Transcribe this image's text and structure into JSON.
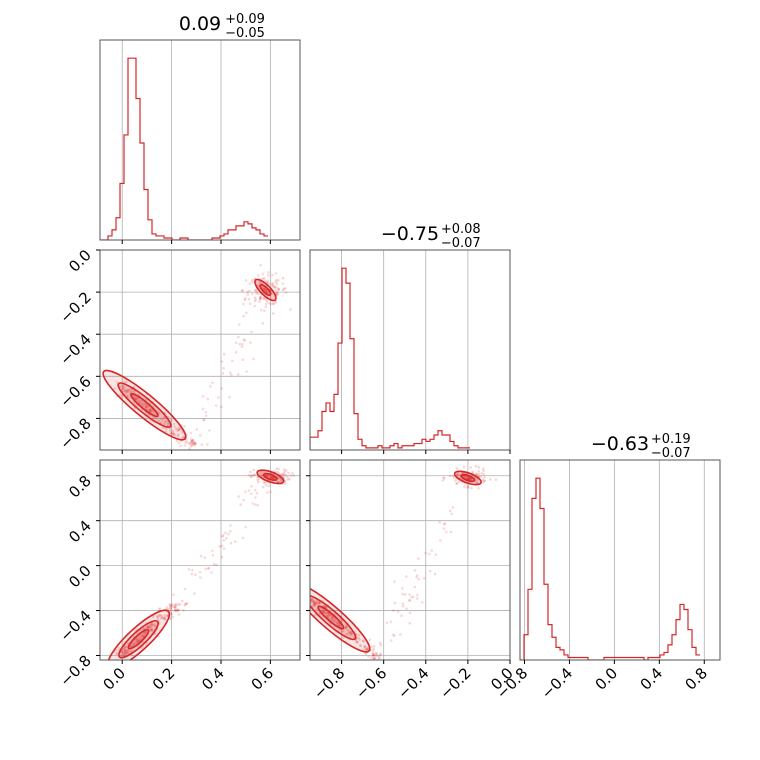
{
  "figure": {
    "type": "corner_plot",
    "color": "#d62728",
    "grid": true
  },
  "chart_data": [
    {
      "id": "hist-p0",
      "type": "histogram",
      "title": {
        "median": "0.09",
        "plus": "+0.09",
        "minus": "−0.05"
      },
      "xlim": [
        -0.09,
        0.72
      ],
      "xticks": [
        0.0,
        0.2,
        0.4,
        0.6
      ],
      "bin_start": -0.09,
      "bin_width": 0.0162,
      "counts": [
        0,
        0,
        2,
        5,
        11,
        28,
        52,
        90,
        90,
        70,
        48,
        25,
        10,
        3,
        2,
        2,
        1,
        1,
        0,
        0,
        1,
        1,
        0,
        0,
        0,
        0,
        0,
        0,
        1,
        1,
        2,
        3,
        5,
        5,
        7,
        7,
        9,
        8,
        6,
        5,
        3,
        2
      ]
    },
    {
      "id": "hist-p1",
      "type": "histogram",
      "title": {
        "median": "−0.75",
        "plus": "+0.08",
        "minus": "−0.07"
      },
      "xlim": [
        -0.95,
        0.0
      ],
      "xticks": [
        -0.8,
        -0.6,
        -0.4,
        -0.2,
        0.0
      ],
      "bin_start": -0.95,
      "bin_width": 0.019,
      "counts": [
        6,
        6,
        9,
        18,
        22,
        18,
        26,
        50,
        85,
        78,
        52,
        17,
        5,
        2,
        1,
        1,
        1,
        2,
        1,
        1,
        2,
        3,
        1,
        2,
        2,
        2,
        3,
        3,
        5,
        4,
        5,
        7,
        9,
        7,
        7,
        4,
        2,
        1,
        1,
        1
      ]
    },
    {
      "id": "hist-p2",
      "type": "histogram",
      "title": {
        "median": "−0.63",
        "plus": "+0.19",
        "minus": "−0.07"
      },
      "xlim": [
        -0.84,
        0.94
      ],
      "xticks": [
        -0.8,
        -0.4,
        0.0,
        0.4,
        0.8
      ],
      "bin_start": -0.84,
      "bin_width": 0.0356,
      "counts": [
        0,
        10,
        28,
        64,
        72,
        60,
        30,
        14,
        9,
        5,
        4,
        2,
        1,
        1,
        1,
        1,
        1,
        0,
        0,
        0,
        0,
        1,
        1,
        1,
        1,
        1,
        1,
        1,
        1,
        1,
        1,
        0,
        1,
        1,
        1,
        2,
        3,
        6,
        10,
        16,
        22,
        20,
        12,
        5,
        2
      ]
    },
    {
      "id": "scatter-p0-p1",
      "type": "scatter",
      "xlim": [
        -0.09,
        0.72
      ],
      "ylim": [
        -0.95,
        0.0
      ],
      "xticks": [
        0.0,
        0.2,
        0.4,
        0.6
      ],
      "yticks": [
        0.0,
        -0.2,
        -0.4,
        -0.6,
        -0.8
      ],
      "mode1": {
        "from": [
          0.0,
          -0.65
        ],
        "to": [
          0.3,
          -0.94
        ],
        "spread": 0.018
      },
      "mode2": {
        "center": [
          0.58,
          -0.19
        ],
        "spread": 0.045
      }
    },
    {
      "id": "scatter-p0-p2",
      "type": "scatter",
      "xlim": [
        -0.09,
        0.72
      ],
      "ylim": [
        -0.84,
        0.94
      ],
      "xticks": [
        0.0,
        0.2,
        0.4,
        0.6
      ],
      "yticks": [
        0.8,
        0.4,
        0.0,
        -0.4,
        -0.8
      ],
      "mode1": {
        "from": [
          0.0,
          -0.79
        ],
        "to": [
          0.22,
          -0.34
        ],
        "spread": 0.02
      },
      "mode2": {
        "center": [
          0.6,
          0.79
        ],
        "spread": 0.04
      }
    },
    {
      "id": "scatter-p1-p2",
      "type": "scatter",
      "xlim": [
        -0.95,
        0.0
      ],
      "ylim": [
        -0.84,
        0.94
      ],
      "xticks": [
        -0.8,
        -0.6,
        -0.4,
        -0.2,
        0.0
      ],
      "yticks": [
        0.8,
        0.4,
        0.0,
        -0.4,
        -0.8
      ],
      "mode1": {
        "from": [
          -0.95,
          -0.3
        ],
        "to": [
          -0.62,
          -0.84
        ],
        "spread": 0.02
      },
      "mode2": {
        "center": [
          -0.2,
          0.78
        ],
        "spread": 0.045
      }
    }
  ]
}
